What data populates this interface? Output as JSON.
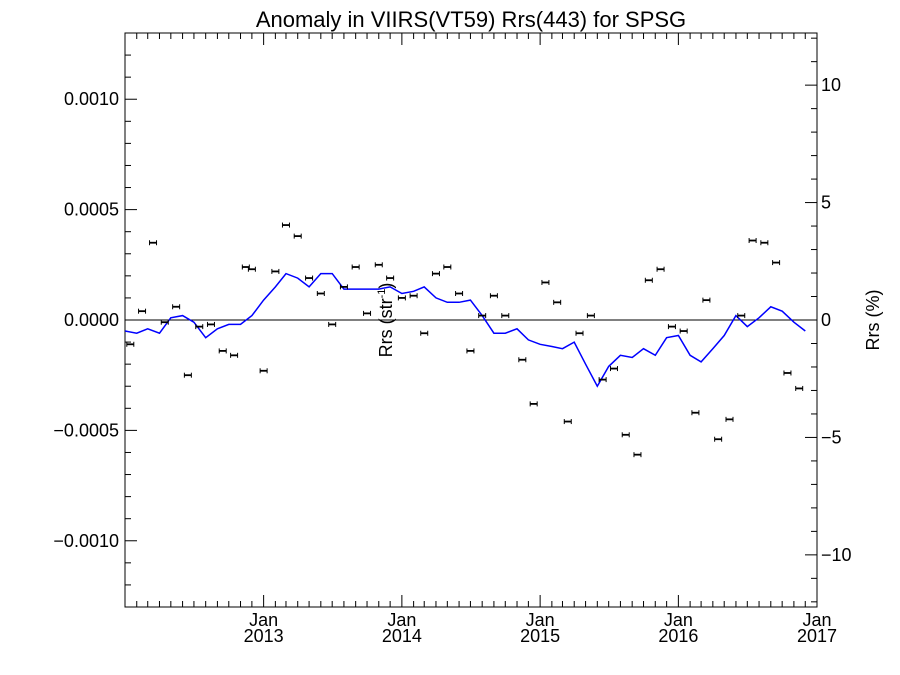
{
  "chart_data": {
    "type": "scatter",
    "title": "Anomaly in VIIRS(VT59) Rrs(443) for SPSG",
    "ylabel": "Rrs (str",
    "ylabel_exp": "-1",
    "ylabel_close": ")",
    "y2label": "Rrs (%)",
    "xlim": [
      "2012-01-01",
      "2017-01-01"
    ],
    "ylim": [
      -0.0013,
      0.0013
    ],
    "y2lim": [
      -12.22,
      12.22
    ],
    "y_ticks": [
      -0.001,
      -0.0005,
      0,
      0.0005,
      0.001
    ],
    "y_tick_labels": [
      "−0.0010",
      "−0.0005",
      "0.0000",
      "0.0005",
      "0.0010"
    ],
    "y2_ticks": [
      -10,
      -5,
      0,
      5,
      10
    ],
    "y2_tick_labels": [
      "−10",
      "−5",
      "0",
      "5",
      "10"
    ],
    "x_ticks": [
      {
        "date": "2013-01-01",
        "month": "Jan",
        "year": "2013"
      },
      {
        "date": "2014-01-01",
        "month": "Jan",
        "year": "2014"
      },
      {
        "date": "2015-01-01",
        "month": "Jan",
        "year": "2015"
      },
      {
        "date": "2016-01-01",
        "month": "Jan",
        "year": "2016"
      },
      {
        "date": "2017-01-01",
        "month": "Jan",
        "year": "2017"
      }
    ],
    "zero_line": true,
    "colors": {
      "points": "#000000",
      "line": "#0000ff",
      "axes": "#000000"
    },
    "series": [
      {
        "type": "scatter-errorbar",
        "points": [
          [
            "2012-01-15",
            -0.00011
          ],
          [
            "2012-02-15",
            4e-05
          ],
          [
            "2012-03-15",
            0.00035
          ],
          [
            "2012-04-15",
            -1e-05
          ],
          [
            "2012-05-15",
            6e-05
          ],
          [
            "2012-06-15",
            -0.00025
          ],
          [
            "2012-07-15",
            -3e-05
          ],
          [
            "2012-08-15",
            -2e-05
          ],
          [
            "2012-09-15",
            -0.00014
          ],
          [
            "2012-10-15",
            -0.00016
          ],
          [
            "2012-11-15",
            0.00024
          ],
          [
            "2012-12-01",
            0.00023
          ],
          [
            "2013-01-01",
            -0.00023
          ],
          [
            "2013-02-01",
            0.00022
          ],
          [
            "2013-03-01",
            0.00043
          ],
          [
            "2013-04-01",
            0.00038
          ],
          [
            "2013-05-01",
            0.00019
          ],
          [
            "2013-06-01",
            0.00012
          ],
          [
            "2013-07-01",
            -2e-05
          ],
          [
            "2013-08-01",
            0.00015
          ],
          [
            "2013-09-01",
            0.00024
          ],
          [
            "2013-10-01",
            3e-05
          ],
          [
            "2013-11-01",
            0.00025
          ],
          [
            "2013-12-01",
            0.00019
          ],
          [
            "2014-01-01",
            0.0001
          ],
          [
            "2014-02-01",
            0.00011
          ],
          [
            "2014-03-01",
            -6e-05
          ],
          [
            "2014-04-01",
            0.00021
          ],
          [
            "2014-05-01",
            0.00024
          ],
          [
            "2014-06-01",
            0.00012
          ],
          [
            "2014-07-01",
            -0.00014
          ],
          [
            "2014-08-01",
            2e-05
          ],
          [
            "2014-09-01",
            0.00011
          ],
          [
            "2014-10-01",
            2e-05
          ],
          [
            "2014-11-15",
            -0.00018
          ],
          [
            "2014-12-15",
            -0.00038
          ],
          [
            "2015-01-15",
            0.00017
          ],
          [
            "2015-02-15",
            8e-05
          ],
          [
            "2015-03-15",
            -0.00046
          ],
          [
            "2015-04-15",
            -6e-05
          ],
          [
            "2015-05-15",
            2e-05
          ],
          [
            "2015-06-15",
            -0.00027
          ],
          [
            "2015-07-15",
            -0.00022
          ],
          [
            "2015-08-15",
            -0.00052
          ],
          [
            "2015-09-15",
            -0.00061
          ],
          [
            "2015-10-15",
            0.00018
          ],
          [
            "2015-11-15",
            0.00023
          ],
          [
            "2015-12-15",
            -3e-05
          ],
          [
            "2016-01-15",
            -5e-05
          ],
          [
            "2016-02-15",
            -0.00042
          ],
          [
            "2016-03-15",
            9e-05
          ],
          [
            "2016-04-15",
            -0.00054
          ],
          [
            "2016-05-15",
            -0.00045
          ],
          [
            "2016-06-15",
            2e-05
          ],
          [
            "2016-07-15",
            0.00036
          ],
          [
            "2016-08-15",
            0.00035
          ],
          [
            "2016-09-15",
            0.00026
          ],
          [
            "2016-10-15",
            -0.00024
          ],
          [
            "2016-11-15",
            -0.00031
          ]
        ]
      },
      {
        "type": "line",
        "points": [
          [
            "2012-01-01",
            -5e-05
          ],
          [
            "2012-02-01",
            -6e-05
          ],
          [
            "2012-03-01",
            -4e-05
          ],
          [
            "2012-04-01",
            -6e-05
          ],
          [
            "2012-05-01",
            1e-05
          ],
          [
            "2012-06-01",
            2e-05
          ],
          [
            "2012-07-01",
            -1e-05
          ],
          [
            "2012-08-01",
            -8e-05
          ],
          [
            "2012-09-01",
            -4e-05
          ],
          [
            "2012-10-01",
            -2e-05
          ],
          [
            "2012-11-01",
            -2e-05
          ],
          [
            "2012-12-01",
            2e-05
          ],
          [
            "2013-01-01",
            9e-05
          ],
          [
            "2013-02-01",
            0.00015
          ],
          [
            "2013-03-01",
            0.00021
          ],
          [
            "2013-04-01",
            0.00019
          ],
          [
            "2013-05-01",
            0.00015
          ],
          [
            "2013-06-01",
            0.00021
          ],
          [
            "2013-07-01",
            0.00021
          ],
          [
            "2013-08-01",
            0.00014
          ],
          [
            "2013-09-01",
            0.00014
          ],
          [
            "2013-10-01",
            0.00014
          ],
          [
            "2013-11-01",
            0.00014
          ],
          [
            "2013-12-01",
            0.00015
          ],
          [
            "2014-01-01",
            0.00012
          ],
          [
            "2014-02-01",
            0.00013
          ],
          [
            "2014-03-01",
            0.00015
          ],
          [
            "2014-04-01",
            0.0001
          ],
          [
            "2014-05-01",
            8e-05
          ],
          [
            "2014-06-01",
            8e-05
          ],
          [
            "2014-07-01",
            9e-05
          ],
          [
            "2014-08-01",
            2e-05
          ],
          [
            "2014-09-01",
            -6e-05
          ],
          [
            "2014-10-01",
            -6e-05
          ],
          [
            "2014-11-01",
            -4e-05
          ],
          [
            "2014-12-01",
            -9e-05
          ],
          [
            "2015-01-01",
            -0.00011
          ],
          [
            "2015-02-01",
            -0.00012
          ],
          [
            "2015-03-01",
            -0.00013
          ],
          [
            "2015-04-01",
            -0.0001
          ],
          [
            "2015-05-01",
            -0.0002
          ],
          [
            "2015-06-01",
            -0.0003
          ],
          [
            "2015-07-01",
            -0.00021
          ],
          [
            "2015-08-01",
            -0.00016
          ],
          [
            "2015-09-01",
            -0.00017
          ],
          [
            "2015-10-01",
            -0.00013
          ],
          [
            "2015-11-01",
            -0.00016
          ],
          [
            "2015-12-01",
            -8e-05
          ],
          [
            "2016-01-01",
            -7e-05
          ],
          [
            "2016-02-01",
            -0.00016
          ],
          [
            "2016-03-01",
            -0.00019
          ],
          [
            "2016-04-01",
            -0.00013
          ],
          [
            "2016-05-01",
            -7e-05
          ],
          [
            "2016-06-01",
            2e-05
          ],
          [
            "2016-07-01",
            -3e-05
          ],
          [
            "2016-08-01",
            1e-05
          ],
          [
            "2016-09-01",
            6e-05
          ],
          [
            "2016-10-01",
            4e-05
          ],
          [
            "2016-11-01",
            -1e-05
          ],
          [
            "2016-12-01",
            -5e-05
          ]
        ]
      }
    ]
  }
}
